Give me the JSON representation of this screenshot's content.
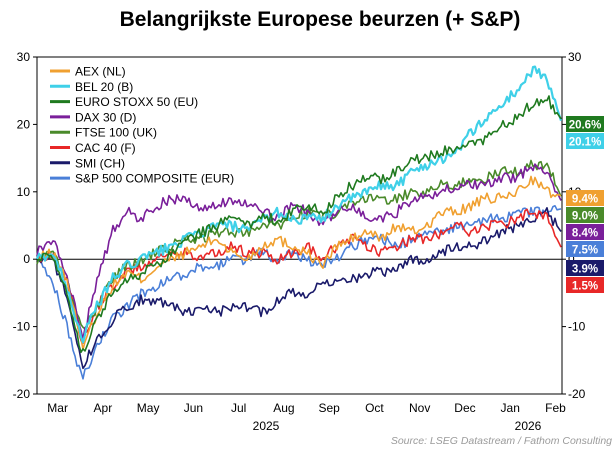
{
  "chart_data": {
    "type": "line",
    "title": "Belangrijkste Europese beurzen (+ S&P)",
    "ylim": [
      -20,
      30
    ],
    "yticks": [
      -20,
      -10,
      0,
      10,
      20,
      30
    ],
    "month_labels": [
      "Mar",
      "Apr",
      "May",
      "Jun",
      "Jul",
      "Aug",
      "Sep",
      "Oct",
      "Nov",
      "Dec",
      "Jan",
      "Feb"
    ],
    "year_labels": [
      "2025",
      "2026"
    ],
    "source": "Source: LSEG Datastream / Fathom Consulting",
    "series": [
      {
        "name": "AEX (NL)",
        "color": "#f0a030",
        "end_label": "9.4%",
        "end_value": 9.4,
        "values": [
          0,
          1,
          -3,
          -13,
          -8,
          -4,
          -2,
          -3,
          -1,
          0,
          1,
          2,
          3,
          1,
          0,
          2,
          3,
          2,
          1,
          -1,
          2,
          3,
          4,
          3,
          5,
          4,
          5,
          7,
          7,
          8,
          9,
          9,
          10,
          12,
          10,
          9.4
        ]
      },
      {
        "name": "BEL 20 (B)",
        "color": "#3fd0e8",
        "end_label": "20.1%",
        "end_value": 20.1,
        "values": [
          0,
          1,
          -4,
          -12,
          -7,
          -3,
          -1,
          0,
          1,
          2,
          3,
          4,
          5,
          5,
          4,
          6,
          7,
          6,
          6,
          6,
          8,
          9,
          10,
          11,
          11,
          13,
          14,
          15,
          16,
          19,
          21,
          23,
          25,
          28,
          27,
          20.1
        ]
      },
      {
        "name": "EURO STOXX 50 (EU)",
        "color": "#1f7a1f",
        "end_label": "20.6%",
        "end_value": 20.6,
        "values": [
          0,
          1,
          -5,
          -14,
          -9,
          -5,
          -3,
          -2,
          -1,
          1,
          3,
          4,
          5,
          6,
          5,
          6,
          6,
          7,
          8,
          7,
          9,
          11,
          12,
          12,
          13,
          15,
          15,
          16,
          16,
          17,
          18,
          20,
          21,
          23,
          24,
          20.6
        ]
      },
      {
        "name": "DAX 30 (D)",
        "color": "#7a1f9a",
        "end_label": "8.4%",
        "end_value": 8.4,
        "values": [
          1,
          3,
          -2,
          -12,
          -3,
          4,
          7,
          6,
          8,
          9,
          9,
          7,
          8,
          9,
          8,
          7,
          6,
          8,
          7,
          5,
          7,
          8,
          6,
          6,
          7,
          9,
          9,
          10,
          11,
          11,
          11,
          12,
          12,
          14,
          13,
          8.4
        ]
      },
      {
        "name": "FTSE 100 (UK)",
        "color": "#4a8a2a",
        "end_label": "9.0%",
        "end_value": 9.0,
        "values": [
          0,
          1,
          -3,
          -11,
          -7,
          -3,
          -1,
          0,
          1,
          2,
          3,
          3,
          4,
          4,
          4,
          5,
          5,
          6,
          7,
          6,
          7,
          8,
          9,
          9,
          9,
          10,
          10,
          11,
          11,
          12,
          12,
          13,
          13,
          14,
          14,
          9.0
        ]
      },
      {
        "name": "CAC 40 (F)",
        "color": "#e82828",
        "end_label": "1.5%",
        "end_value": 1.5,
        "values": [
          0,
          1,
          -3,
          -12,
          -7,
          -4,
          -2,
          -1,
          0,
          1,
          1,
          0,
          1,
          2,
          1,
          1,
          0,
          1,
          2,
          0,
          2,
          3,
          2,
          1,
          2,
          3,
          3,
          4,
          5,
          4,
          5,
          5,
          6,
          7,
          6,
          1.5
        ]
      },
      {
        "name": "SMI (CH)",
        "color": "#1a1a6a",
        "end_label": "3.9%",
        "end_value": 3.9,
        "values": [
          0,
          0,
          -5,
          -16,
          -12,
          -9,
          -7,
          -6,
          -6,
          -7,
          -8,
          -7,
          -8,
          -7,
          -7,
          -8,
          -6,
          -5,
          -5,
          -4,
          -3,
          -3,
          -2,
          -2,
          -1,
          0,
          0,
          1,
          2,
          2,
          3,
          4,
          5,
          6,
          7,
          3.9
        ]
      },
      {
        "name": "S&P 500 COMPOSITE (EUR)",
        "color": "#4a7fd8",
        "end_label": "7.5%",
        "end_value": 7.5,
        "values": [
          0,
          -3,
          -10,
          -18,
          -13,
          -9,
          -7,
          -5,
          -4,
          -3,
          -2,
          -1,
          -1,
          0,
          0,
          1,
          0,
          1,
          0,
          -1,
          0,
          2,
          3,
          3,
          2,
          3,
          4,
          4,
          5,
          5,
          6,
          6,
          7,
          7,
          7,
          7.5
        ]
      }
    ]
  }
}
